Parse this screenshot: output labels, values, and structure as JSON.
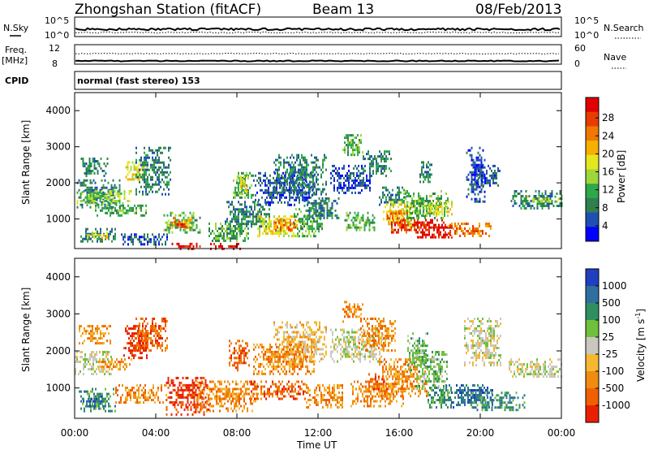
{
  "header": {
    "station": "Zhongshan Station (fitACF)",
    "beam": "Beam 13",
    "date": "08/Feb/2013"
  },
  "params": {
    "nsky_label": "N.Sky",
    "nsky_top": "10^5",
    "nsky_bottom": "10^0",
    "nsearch_label": "N.Search",
    "nsearch_top": "10^5",
    "nsearch_bottom": "10^0",
    "freq_label": "Freq.",
    "freq_unit": "[MHz]",
    "freq_top": "12",
    "freq_bottom": "8",
    "nave_label": "Nave",
    "nave_top": "60",
    "nave_bottom": "0",
    "cpid_label": "CPID",
    "cpid_value": "normal (fast stereo) 153"
  },
  "chart_data": [
    {
      "type": "heatmap",
      "name": "power",
      "ylabel": "Slant Range [km]",
      "yticks": [
        1000,
        2000,
        3000,
        4000
      ],
      "ylim": [
        180,
        4500
      ],
      "xticks": [
        "00:00",
        "04:00",
        "08:00",
        "12:00",
        "16:00",
        "20:00",
        "00:00"
      ],
      "xlim_hours": [
        0,
        24
      ],
      "colorbar": {
        "label": "Power [dB]",
        "ticks": [
          "4",
          "8",
          "12",
          "16",
          "20",
          "24",
          "28"
        ],
        "colors": [
          "#0000ff",
          "#1f4fb0",
          "#2f7f4f",
          "#2ea84a",
          "#9fd63a",
          "#e6e61e",
          "#f5b000",
          "#f07800",
          "#e83c00",
          "#e00000"
        ]
      },
      "regions": [
        {
          "t0": 0.1,
          "t1": 2.2,
          "r0": 1300,
          "r1": 2100,
          "level": 2
        },
        {
          "t0": 0.3,
          "t1": 1.6,
          "r0": 2200,
          "r1": 2700,
          "level": 2
        },
        {
          "t0": 0.1,
          "t1": 2.8,
          "r0": 1450,
          "r1": 1800,
          "level": 4
        },
        {
          "t0": 1.0,
          "t1": 3.5,
          "r0": 1100,
          "r1": 1400,
          "level": 3
        },
        {
          "t0": 2.5,
          "t1": 3.6,
          "r0": 2100,
          "r1": 2600,
          "level": 5
        },
        {
          "t0": 3.0,
          "t1": 4.7,
          "r0": 1700,
          "r1": 3000,
          "level": 2
        },
        {
          "t0": 0.2,
          "t1": 2.0,
          "r0": 400,
          "r1": 750,
          "level": 2
        },
        {
          "t0": 0.6,
          "t1": 1.6,
          "r0": 500,
          "r1": 650,
          "level": 5
        },
        {
          "t0": 2.2,
          "t1": 4.6,
          "r0": 300,
          "r1": 600,
          "level": 1
        },
        {
          "t0": 4.3,
          "t1": 6.2,
          "r0": 600,
          "r1": 1200,
          "level": 3
        },
        {
          "t0": 4.6,
          "t1": 5.8,
          "r0": 750,
          "r1": 1050,
          "level": 6
        },
        {
          "t0": 4.9,
          "t1": 5.6,
          "r0": 800,
          "r1": 950,
          "level": 8
        },
        {
          "t0": 4.7,
          "t1": 6.8,
          "r0": 200,
          "r1": 340,
          "level": 9
        },
        {
          "t0": 6.6,
          "t1": 8.6,
          "r0": 400,
          "r1": 900,
          "level": 3
        },
        {
          "t0": 7.4,
          "t1": 9.6,
          "r0": 700,
          "r1": 1500,
          "level": 2
        },
        {
          "t0": 7.8,
          "t1": 8.8,
          "r0": 1600,
          "r1": 2300,
          "level": 3
        },
        {
          "t0": 8.0,
          "t1": 8.5,
          "r0": 1700,
          "r1": 2200,
          "level": 5
        },
        {
          "t0": 9.0,
          "t1": 11.0,
          "r0": 500,
          "r1": 1100,
          "level": 5
        },
        {
          "t0": 9.8,
          "t1": 11.2,
          "r0": 700,
          "r1": 1000,
          "level": 7
        },
        {
          "t0": 10.8,
          "t1": 12.2,
          "r0": 500,
          "r1": 1300,
          "level": 3
        },
        {
          "t0": 8.8,
          "t1": 11.8,
          "r0": 1400,
          "r1": 2300,
          "level": 1
        },
        {
          "t0": 9.8,
          "t1": 12.4,
          "r0": 1700,
          "r1": 2800,
          "level": 2
        },
        {
          "t0": 11.3,
          "t1": 13.0,
          "r0": 1000,
          "r1": 1600,
          "level": 2
        },
        {
          "t0": 12.6,
          "t1": 14.6,
          "r0": 1700,
          "r1": 2500,
          "level": 1
        },
        {
          "t0": 13.2,
          "t1": 14.2,
          "r0": 2800,
          "r1": 3350,
          "level": 3
        },
        {
          "t0": 14.2,
          "t1": 15.6,
          "r0": 2200,
          "r1": 2900,
          "level": 2
        },
        {
          "t0": 13.3,
          "t1": 14.8,
          "r0": 700,
          "r1": 1200,
          "level": 3
        },
        {
          "t0": 15.0,
          "t1": 16.4,
          "r0": 1400,
          "r1": 1900,
          "level": 2
        },
        {
          "t0": 15.2,
          "t1": 16.8,
          "r0": 800,
          "r1": 1500,
          "level": 5
        },
        {
          "t0": 15.4,
          "t1": 16.4,
          "r0": 900,
          "r1": 1250,
          "level": 7
        },
        {
          "t0": 15.6,
          "t1": 17.3,
          "r0": 600,
          "r1": 1000,
          "level": 8
        },
        {
          "t0": 16.8,
          "t1": 18.6,
          "r0": 500,
          "r1": 1000,
          "level": 9
        },
        {
          "t0": 16.2,
          "t1": 18.4,
          "r0": 1000,
          "r1": 1800,
          "level": 3
        },
        {
          "t0": 17.2,
          "t1": 18.6,
          "r0": 1100,
          "r1": 1500,
          "level": 5
        },
        {
          "t0": 18.4,
          "t1": 20.5,
          "r0": 500,
          "r1": 900,
          "level": 7
        },
        {
          "t0": 19.3,
          "t1": 20.2,
          "r0": 1500,
          "r1": 3000,
          "level": 1
        },
        {
          "t0": 19.8,
          "t1": 21.0,
          "r0": 1900,
          "r1": 2500,
          "level": 1
        },
        {
          "t0": 21.5,
          "t1": 24.0,
          "r0": 1300,
          "r1": 1800,
          "level": 2
        },
        {
          "t0": 22.3,
          "t1": 24.0,
          "r0": 1450,
          "r1": 1650,
          "level": 4
        },
        {
          "t0": 17.0,
          "t1": 17.6,
          "r0": 2000,
          "r1": 2600,
          "level": 2
        },
        {
          "t0": 6.6,
          "t1": 8.2,
          "r0": 200,
          "r1": 340,
          "level": 9
        }
      ]
    },
    {
      "type": "heatmap",
      "name": "velocity",
      "ylabel": "Slant Range [km]",
      "yticks": [
        1000,
        2000,
        3000,
        4000
      ],
      "ylim": [
        180,
        4500
      ],
      "xticks": [
        "00:00",
        "04:00",
        "08:00",
        "12:00",
        "16:00",
        "20:00",
        "00:00"
      ],
      "xlabel": "Time UT",
      "xlim_hours": [
        0,
        24
      ],
      "colorbar": {
        "label": "Velocity [m s",
        "label_sup": "-1",
        "label_end": "]",
        "ticks": [
          "1000",
          "500",
          "100",
          "25",
          "-25",
          "-100",
          "-500",
          "-1000"
        ],
        "colors": [
          "#1f3fc0",
          "#2f6fa0",
          "#2f8f5f",
          "#6fc03a",
          "#c8c8c0",
          "#f5b830",
          "#f08c10",
          "#f06000",
          "#e82000"
        ]
      },
      "regions": [
        {
          "t0": 0.0,
          "t1": 1.8,
          "r0": 1400,
          "r1": 2000,
          "level": 4
        },
        {
          "t0": 0.2,
          "t1": 1.8,
          "r0": 2200,
          "r1": 2700,
          "level": 6
        },
        {
          "t0": 1.0,
          "t1": 2.8,
          "r0": 1500,
          "r1": 1800,
          "level": 6
        },
        {
          "t0": 2.4,
          "t1": 3.6,
          "r0": 1800,
          "r1": 2700,
          "level": 8
        },
        {
          "t0": 3.0,
          "t1": 4.6,
          "r0": 2000,
          "r1": 2900,
          "level": 7
        },
        {
          "t0": 0.2,
          "t1": 2.0,
          "r0": 400,
          "r1": 1000,
          "level": 2
        },
        {
          "t0": 0.4,
          "t1": 1.4,
          "r0": 500,
          "r1": 800,
          "level": 1
        },
        {
          "t0": 2.0,
          "t1": 4.5,
          "r0": 600,
          "r1": 1100,
          "level": 6
        },
        {
          "t0": 4.5,
          "t1": 6.6,
          "r0": 300,
          "r1": 1300,
          "level": 8
        },
        {
          "t0": 6.0,
          "t1": 9.0,
          "r0": 400,
          "r1": 1200,
          "level": 6
        },
        {
          "t0": 7.6,
          "t1": 8.6,
          "r0": 1500,
          "r1": 2300,
          "level": 7
        },
        {
          "t0": 8.6,
          "t1": 11.4,
          "r0": 700,
          "r1": 1200,
          "level": 7
        },
        {
          "t0": 9.8,
          "t1": 12.4,
          "r0": 1700,
          "r1": 2800,
          "level": 5
        },
        {
          "t0": 8.8,
          "t1": 11.8,
          "r0": 1400,
          "r1": 2200,
          "level": 6
        },
        {
          "t0": 11.4,
          "t1": 13.2,
          "r0": 500,
          "r1": 1100,
          "level": 6
        },
        {
          "t0": 12.6,
          "t1": 15.2,
          "r0": 1700,
          "r1": 2600,
          "level": 4
        },
        {
          "t0": 13.2,
          "t1": 14.2,
          "r0": 2800,
          "r1": 3350,
          "level": 6
        },
        {
          "t0": 14.0,
          "t1": 15.8,
          "r0": 2000,
          "r1": 2900,
          "level": 6
        },
        {
          "t0": 13.6,
          "t1": 16.2,
          "r0": 500,
          "r1": 1200,
          "level": 6
        },
        {
          "t0": 15.0,
          "t1": 17.4,
          "r0": 800,
          "r1": 1800,
          "level": 6
        },
        {
          "t0": 16.8,
          "t1": 18.4,
          "r0": 1000,
          "r1": 2000,
          "level": 3
        },
        {
          "t0": 17.4,
          "t1": 18.6,
          "r0": 500,
          "r1": 1100,
          "level": 2
        },
        {
          "t0": 18.4,
          "t1": 20.6,
          "r0": 500,
          "r1": 1100,
          "level": 1
        },
        {
          "t0": 19.2,
          "t1": 21.0,
          "r0": 1600,
          "r1": 2900,
          "level": 4
        },
        {
          "t0": 21.4,
          "t1": 24.0,
          "r0": 1300,
          "r1": 1800,
          "level": 4
        },
        {
          "t0": 19.5,
          "t1": 22.2,
          "r0": 400,
          "r1": 900,
          "level": 2
        },
        {
          "t0": 16.4,
          "t1": 17.4,
          "r0": 1500,
          "r1": 2500,
          "level": 3
        },
        {
          "t0": 14.4,
          "t1": 15.4,
          "r0": 1000,
          "r1": 1400,
          "level": 7
        }
      ]
    }
  ]
}
